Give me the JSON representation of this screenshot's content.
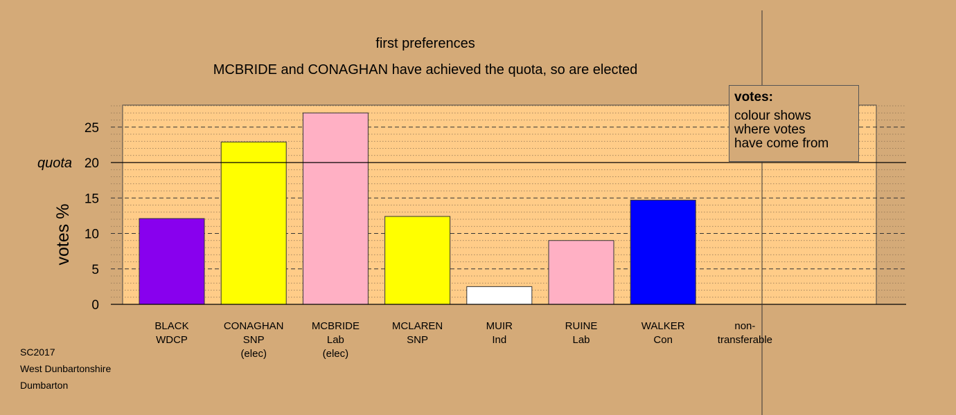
{
  "title": "first preferences",
  "subtitle": "MCBRIDE and CONAGHAN have achieved the quota, so are elected",
  "legend": {
    "title": "votes:",
    "lines": [
      "colour shows",
      "where votes",
      "have come from"
    ]
  },
  "footer": [
    "SC2017",
    "West Dunbartonshire",
    "Dumbarton"
  ],
  "chart_data": {
    "type": "bar",
    "ylabel": "votes %",
    "ylim": [
      0,
      28
    ],
    "yticks": [
      0,
      5,
      10,
      15,
      20,
      25
    ],
    "quota": {
      "value": 20,
      "label": "quota"
    },
    "grid": true,
    "categories": [
      {
        "lines": [
          "BLACK",
          "WDCP"
        ],
        "value": 12.1,
        "color": "#8800ee"
      },
      {
        "lines": [
          "CONAGHAN",
          "SNP",
          "(elec)"
        ],
        "value": 22.9,
        "color": "#ffff00"
      },
      {
        "lines": [
          "MCBRIDE",
          "Lab",
          "(elec)"
        ],
        "value": 27.0,
        "color": "#ffb0c4"
      },
      {
        "lines": [
          "MCLAREN",
          "SNP"
        ],
        "value": 12.4,
        "color": "#ffff00"
      },
      {
        "lines": [
          "MUIR",
          "Ind"
        ],
        "value": 2.5,
        "color": "#ffffff"
      },
      {
        "lines": [
          "RUINE",
          "Lab"
        ],
        "value": 9.0,
        "color": "#ffb0c4"
      },
      {
        "lines": [
          "WALKER",
          "Con"
        ],
        "value": 14.7,
        "color": "#0000ff"
      },
      {
        "lines": [
          "non-",
          "transferable"
        ],
        "value": 0,
        "color": "#d4aa78"
      }
    ]
  }
}
